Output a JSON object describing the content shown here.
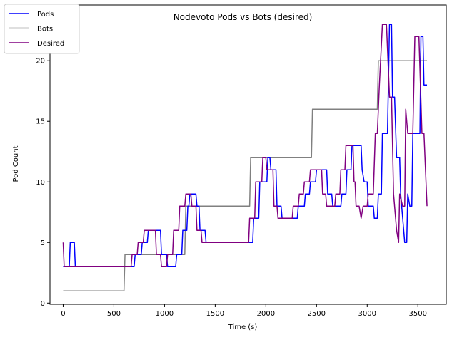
{
  "chart_data": {
    "type": "line",
    "title": "Nodevoto Pods vs Bots (desired)",
    "xlabel": "Time (s)",
    "ylabel": "Pod Count",
    "xlim": [
      -130,
      3780
    ],
    "ylim": [
      -0.1,
      24.6
    ],
    "xticks": [
      0,
      500,
      1000,
      1500,
      2000,
      2500,
      3000,
      3500
    ],
    "yticks": [
      0,
      5,
      10,
      15,
      20
    ],
    "grid": false,
    "legend_position": "top-left",
    "series": [
      {
        "name": "Pods",
        "color": "#0000ff",
        "points": [
          [
            0,
            3
          ],
          [
            60,
            3
          ],
          [
            70,
            5
          ],
          [
            110,
            5
          ],
          [
            120,
            3
          ],
          [
            650,
            3
          ],
          [
            700,
            3
          ],
          [
            710,
            4
          ],
          [
            770,
            4
          ],
          [
            780,
            5
          ],
          [
            830,
            5
          ],
          [
            840,
            6
          ],
          [
            960,
            6
          ],
          [
            970,
            4
          ],
          [
            1020,
            4
          ],
          [
            1030,
            3
          ],
          [
            1110,
            3
          ],
          [
            1120,
            4
          ],
          [
            1170,
            4
          ],
          [
            1180,
            6
          ],
          [
            1220,
            6
          ],
          [
            1230,
            8
          ],
          [
            1240,
            8
          ],
          [
            1250,
            9
          ],
          [
            1310,
            9
          ],
          [
            1320,
            8
          ],
          [
            1340,
            8
          ],
          [
            1350,
            6
          ],
          [
            1400,
            6
          ],
          [
            1410,
            5
          ],
          [
            1870,
            5
          ],
          [
            1880,
            7
          ],
          [
            1930,
            7
          ],
          [
            1940,
            10
          ],
          [
            2010,
            10
          ],
          [
            2020,
            12
          ],
          [
            2040,
            12
          ],
          [
            2050,
            11
          ],
          [
            2100,
            11
          ],
          [
            2110,
            8
          ],
          [
            2150,
            8
          ],
          [
            2160,
            7
          ],
          [
            2310,
            7
          ],
          [
            2320,
            8
          ],
          [
            2380,
            8
          ],
          [
            2390,
            9
          ],
          [
            2430,
            9
          ],
          [
            2440,
            10
          ],
          [
            2490,
            10
          ],
          [
            2500,
            11
          ],
          [
            2600,
            11
          ],
          [
            2610,
            9
          ],
          [
            2650,
            9
          ],
          [
            2660,
            8
          ],
          [
            2740,
            8
          ],
          [
            2750,
            9
          ],
          [
            2790,
            9
          ],
          [
            2800,
            11
          ],
          [
            2840,
            11
          ],
          [
            2850,
            13
          ],
          [
            2940,
            13
          ],
          [
            2950,
            11
          ],
          [
            2970,
            10
          ],
          [
            3000,
            10
          ],
          [
            3010,
            8
          ],
          [
            3060,
            8
          ],
          [
            3070,
            7
          ],
          [
            3100,
            7
          ],
          [
            3110,
            9
          ],
          [
            3140,
            9
          ],
          [
            3150,
            14
          ],
          [
            3200,
            14
          ],
          [
            3220,
            23
          ],
          [
            3240,
            23
          ],
          [
            3250,
            17
          ],
          [
            3270,
            17
          ],
          [
            3290,
            12
          ],
          [
            3320,
            12
          ],
          [
            3330,
            9
          ],
          [
            3370,
            5
          ],
          [
            3390,
            5
          ],
          [
            3400,
            9
          ],
          [
            3420,
            8
          ],
          [
            3440,
            8
          ],
          [
            3450,
            14
          ],
          [
            3520,
            14
          ],
          [
            3530,
            22
          ],
          [
            3550,
            22
          ],
          [
            3560,
            18
          ],
          [
            3590,
            18
          ]
        ]
      },
      {
        "name": "Bots",
        "color": "#808080",
        "points": [
          [
            0,
            1
          ],
          [
            600,
            1
          ],
          [
            610,
            4
          ],
          [
            1200,
            4
          ],
          [
            1210,
            8
          ],
          [
            1840,
            8
          ],
          [
            1850,
            12
          ],
          [
            2450,
            12
          ],
          [
            2460,
            16
          ],
          [
            3100,
            16
          ],
          [
            3110,
            20
          ],
          [
            3590,
            20
          ]
        ]
      },
      {
        "name": "Desired",
        "color": "#800080",
        "points": [
          [
            0,
            5
          ],
          [
            10,
            3
          ],
          [
            620,
            3
          ],
          [
            670,
            3
          ],
          [
            680,
            4
          ],
          [
            730,
            4
          ],
          [
            740,
            5
          ],
          [
            790,
            5
          ],
          [
            800,
            6
          ],
          [
            910,
            6
          ],
          [
            920,
            4
          ],
          [
            960,
            4
          ],
          [
            970,
            3
          ],
          [
            1020,
            3
          ],
          [
            1030,
            4
          ],
          [
            1080,
            4
          ],
          [
            1090,
            6
          ],
          [
            1140,
            6
          ],
          [
            1150,
            8
          ],
          [
            1200,
            8
          ],
          [
            1210,
            9
          ],
          [
            1260,
            9
          ],
          [
            1270,
            8
          ],
          [
            1310,
            8
          ],
          [
            1320,
            6
          ],
          [
            1360,
            6
          ],
          [
            1370,
            5
          ],
          [
            1830,
            5
          ],
          [
            1840,
            7
          ],
          [
            1890,
            7
          ],
          [
            1900,
            10
          ],
          [
            1960,
            10
          ],
          [
            1970,
            12
          ],
          [
            2000,
            12
          ],
          [
            2010,
            11
          ],
          [
            2070,
            11
          ],
          [
            2080,
            8
          ],
          [
            2110,
            8
          ],
          [
            2120,
            7
          ],
          [
            2230,
            7
          ],
          [
            2260,
            7
          ],
          [
            2270,
            8
          ],
          [
            2320,
            8
          ],
          [
            2330,
            9
          ],
          [
            2370,
            9
          ],
          [
            2380,
            10
          ],
          [
            2430,
            10
          ],
          [
            2440,
            11
          ],
          [
            2550,
            11
          ],
          [
            2560,
            9
          ],
          [
            2590,
            9
          ],
          [
            2600,
            8
          ],
          [
            2680,
            8
          ],
          [
            2690,
            9
          ],
          [
            2730,
            9
          ],
          [
            2740,
            11
          ],
          [
            2780,
            11
          ],
          [
            2790,
            13
          ],
          [
            2860,
            13
          ],
          [
            2870,
            10
          ],
          [
            2880,
            10
          ],
          [
            2890,
            8
          ],
          [
            2920,
            8
          ],
          [
            2940,
            7
          ],
          [
            2960,
            8
          ],
          [
            3000,
            8
          ],
          [
            3010,
            9
          ],
          [
            3060,
            9
          ],
          [
            3080,
            14
          ],
          [
            3100,
            14
          ],
          [
            3120,
            18
          ],
          [
            3150,
            23
          ],
          [
            3190,
            23
          ],
          [
            3220,
            17
          ],
          [
            3240,
            17
          ],
          [
            3260,
            9
          ],
          [
            3290,
            6
          ],
          [
            3310,
            5
          ],
          [
            3320,
            9
          ],
          [
            3350,
            8
          ],
          [
            3370,
            8
          ],
          [
            3380,
            16
          ],
          [
            3400,
            14
          ],
          [
            3450,
            14
          ],
          [
            3470,
            22
          ],
          [
            3510,
            22
          ],
          [
            3540,
            14
          ],
          [
            3560,
            14
          ],
          [
            3590,
            8
          ]
        ]
      }
    ]
  }
}
